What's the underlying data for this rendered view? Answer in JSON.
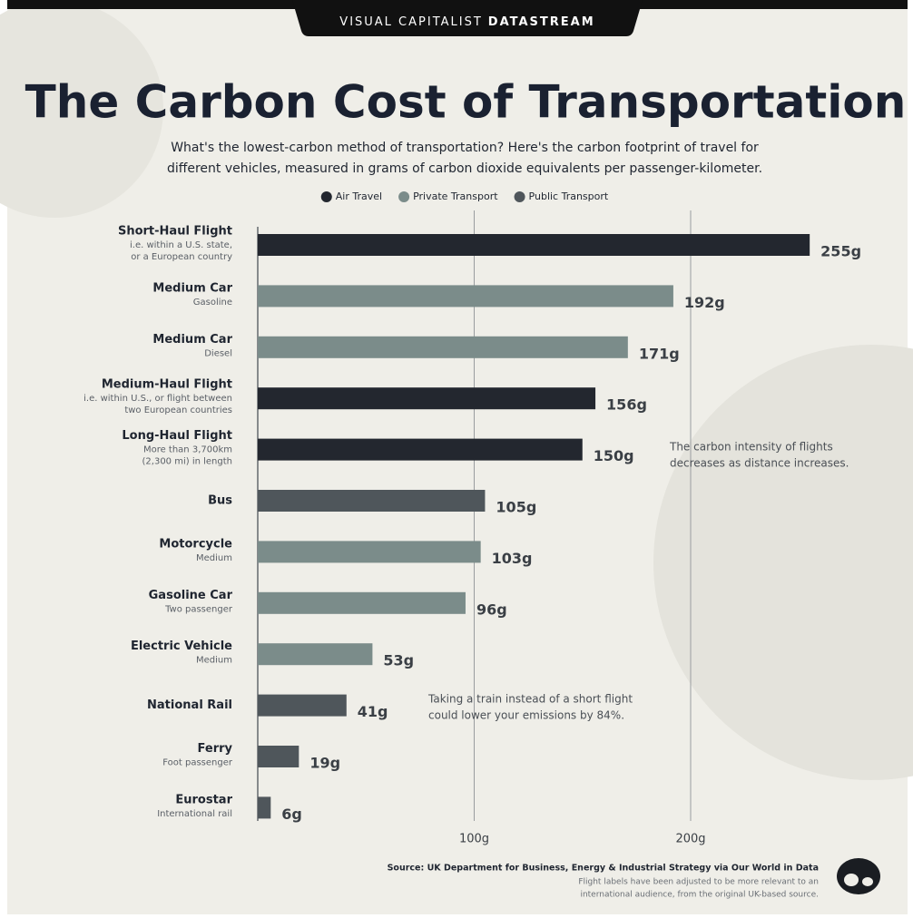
{
  "brand": {
    "name": "VISUAL CAPITALIST",
    "product": "DATASTREAM"
  },
  "chart_data": {
    "type": "bar",
    "orientation": "horizontal",
    "title": "The Carbon Cost of Transportation",
    "subtitle": [
      "What's the lowest-carbon method of transportation? Here's the carbon footprint of travel for",
      "different vehicles, measured in grams of carbon dioxide equivalents per passenger-kilometer."
    ],
    "categories": [
      "Short-Haul Flight",
      "Medium Car",
      "Medium Car",
      "Medium-Haul Flight",
      "Long-Haul Flight",
      "Bus",
      "Motorcycle",
      "Gasoline Car",
      "Electric Vehicle",
      "National Rail",
      "Ferry",
      "Eurostar"
    ],
    "notes": [
      [
        "i.e. within a U.S. state,",
        "or a European country"
      ],
      [
        "Gasoline"
      ],
      [
        "Diesel"
      ],
      [
        "i.e. within U.S., or flight between",
        "two European countries"
      ],
      [
        "More than 3,700km",
        "(2,300 mi) in length"
      ],
      null,
      [
        "Medium"
      ],
      [
        "Two passenger"
      ],
      [
        "Medium"
      ],
      null,
      [
        "Foot passenger"
      ],
      [
        "International rail"
      ]
    ],
    "series": [
      {
        "name": "Air Travel",
        "color": "#23272f",
        "values": [
          255,
          null,
          null,
          156,
          150,
          null,
          null,
          null,
          null,
          null,
          null,
          null
        ],
        "value_labels": [
          "255g",
          null,
          null,
          "156g",
          "150g",
          null,
          null,
          null,
          null,
          null,
          null,
          null
        ]
      },
      {
        "name": "Private Transport",
        "color": "#7b8c8a",
        "values": [
          null,
          192,
          171,
          null,
          null,
          null,
          103,
          96,
          53,
          null,
          null,
          null
        ],
        "value_labels": [
          null,
          "192g",
          "171g",
          null,
          null,
          null,
          "103g",
          "96g",
          "53g",
          null,
          null,
          null
        ]
      },
      {
        "name": "Public Transport",
        "color": "#4f565b",
        "values": [
          null,
          null,
          null,
          null,
          null,
          105,
          null,
          null,
          null,
          41,
          19,
          6
        ],
        "value_labels": [
          null,
          null,
          null,
          null,
          null,
          "105g",
          null,
          null,
          null,
          "41g",
          "19g",
          "6g"
        ]
      }
    ],
    "xlim": [
      0,
      300
    ],
    "xticks": [
      {
        "value": 100,
        "label": "100g"
      },
      {
        "value": 200,
        "label": "200g"
      }
    ],
    "grid": true,
    "annotations": [
      [
        "The carbon intensity of flights",
        "decreases as distance increases."
      ],
      [
        "Taking a train instead of a short flight",
        "could lower your emissions by 84%."
      ]
    ],
    "source": "Source: UK Department for Business, Energy & Industrial Strategy via Our World in Data",
    "footnote": [
      "Flight labels have been adjusted to be more relevant to an",
      "international audience, from the original UK-based source."
    ]
  }
}
